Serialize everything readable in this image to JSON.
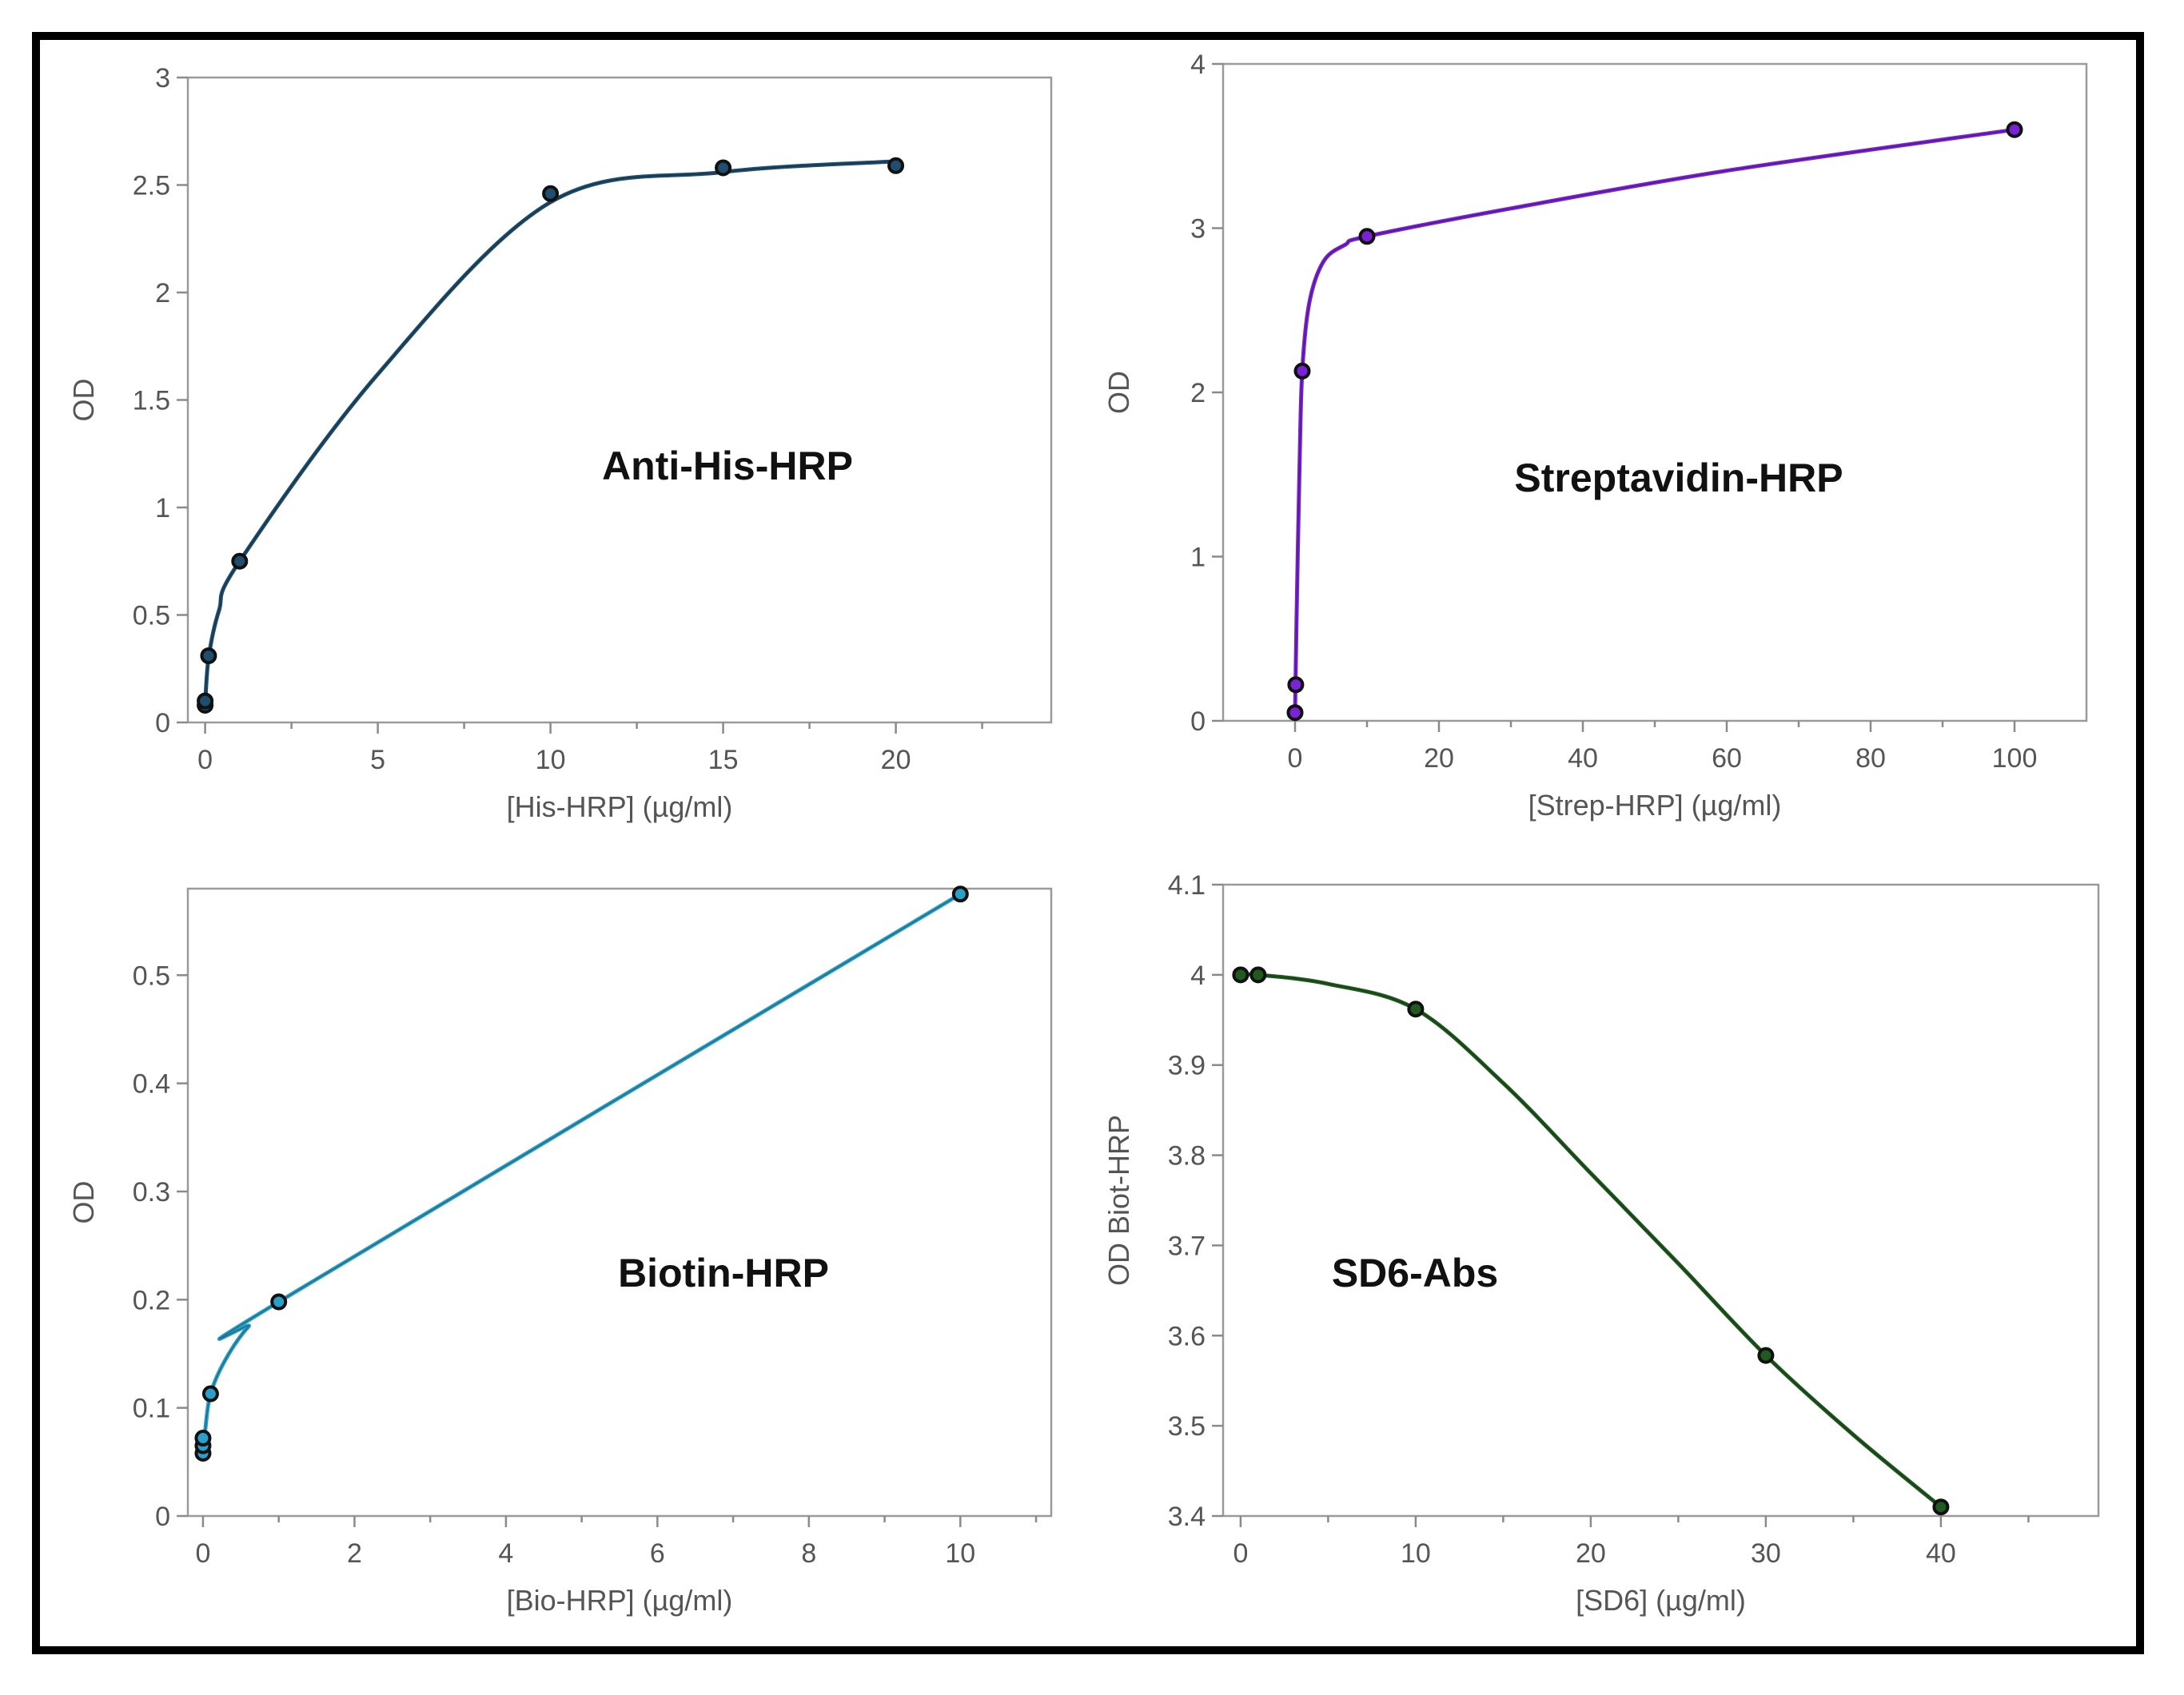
{
  "chart_data": [
    {
      "type": "line",
      "panel_label": "Anti-His-HRP",
      "xlabel": "[His-HRP] (µg/ml)",
      "ylabel": "OD",
      "xlim": [
        -0.5,
        24.5
      ],
      "ylim": [
        0,
        3
      ],
      "xticks": [
        0,
        5,
        10,
        15,
        20
      ],
      "xtick_labels": [
        "0",
        "5",
        "10",
        "15",
        "20"
      ],
      "yticks": [
        0,
        0.5,
        1,
        1.5,
        2,
        2.5,
        3
      ],
      "ytick_labels": [
        "0",
        "0.5",
        "1",
        "1.5",
        "2",
        "2.5",
        "3"
      ],
      "color": "#1f4e6e",
      "points": [
        [
          0,
          0.08
        ],
        [
          0,
          0.1
        ],
        [
          0.1,
          0.31
        ],
        [
          1,
          0.75
        ],
        [
          10,
          2.46
        ],
        [
          15,
          2.58
        ],
        [
          20,
          2.59
        ]
      ],
      "curve": [
        [
          0,
          0.08
        ],
        [
          0.1,
          0.3
        ],
        [
          0.4,
          0.52
        ],
        [
          1,
          0.75
        ],
        [
          5,
          1.62
        ],
        [
          10,
          2.42
        ],
        [
          15,
          2.56
        ],
        [
          20,
          2.61
        ]
      ]
    },
    {
      "type": "line",
      "panel_label": "Streptavidin-HRP",
      "xlabel": "[Strep-HRP] (µg/ml)",
      "ylabel": "OD",
      "xlim": [
        -10,
        110
      ],
      "ylim": [
        0,
        4
      ],
      "xticks": [
        0,
        20,
        40,
        60,
        80,
        100
      ],
      "xtick_labels": [
        "0",
        "20",
        "40",
        "60",
        "80",
        "100"
      ],
      "yticks": [
        0,
        1,
        2,
        3,
        4
      ],
      "ytick_labels": [
        "0",
        "1",
        "2",
        "3",
        "4"
      ],
      "color": "#7a22d6",
      "points": [
        [
          0,
          0.05
        ],
        [
          0.1,
          0.22
        ],
        [
          1,
          2.13
        ],
        [
          10,
          2.95
        ],
        [
          100,
          3.6
        ]
      ],
      "curve": [
        [
          0,
          0.05
        ],
        [
          0.2,
          0.6
        ],
        [
          0.6,
          1.5
        ],
        [
          1,
          2.13
        ],
        [
          2,
          2.55
        ],
        [
          4,
          2.8
        ],
        [
          7,
          2.9
        ],
        [
          10,
          2.95
        ],
        [
          30,
          3.12
        ],
        [
          60,
          3.35
        ],
        [
          100,
          3.6
        ]
      ]
    },
    {
      "type": "line",
      "panel_label": "Biotin-HRP",
      "xlabel": "[Bio-HRP] (µg/ml)",
      "ylabel": "OD",
      "xlim": [
        -0.2,
        11.2
      ],
      "ylim": [
        0,
        0.58
      ],
      "xticks": [
        0,
        2,
        4,
        6,
        8,
        10
      ],
      "xtick_labels": [
        "0",
        "2",
        "4",
        "6",
        "8",
        "10"
      ],
      "yticks": [
        0,
        0.1,
        0.2,
        0.3,
        0.4,
        0.5
      ],
      "ytick_labels": [
        "0",
        "0.1",
        "0.2",
        "0.3",
        "0.4",
        "0.5"
      ],
      "color": "#2aa0c8",
      "points": [
        [
          0,
          0.058
        ],
        [
          0,
          0.065
        ],
        [
          0,
          0.072
        ],
        [
          0.1,
          0.113
        ],
        [
          1,
          0.198
        ],
        [
          10,
          0.575
        ]
      ],
      "curve": [
        [
          0,
          0.058
        ],
        [
          0.03,
          0.08
        ],
        [
          0.1,
          0.113
        ],
        [
          0.3,
          0.145
        ],
        [
          0.6,
          0.175
        ],
        [
          1,
          0.198
        ],
        [
          10,
          0.575
        ]
      ]
    },
    {
      "type": "line",
      "panel_label": "SD6-Abs",
      "xlabel": "[SD6] (µg/ml)",
      "ylabel": "OD Biot-HRP",
      "xlim": [
        -1,
        49
      ],
      "ylim": [
        3.4,
        4.1
      ],
      "xticks": [
        0,
        10,
        20,
        30,
        40
      ],
      "xtick_labels": [
        "0",
        "10",
        "20",
        "30",
        "40"
      ],
      "yticks": [
        3.4,
        3.5,
        3.6,
        3.7,
        3.8,
        3.9,
        4,
        4.1
      ],
      "ytick_labels": [
        "3.4",
        "3.5",
        "3.6",
        "3.7",
        "3.8",
        "3.9",
        "4",
        "4.1"
      ],
      "color": "#1f5a1f",
      "points": [
        [
          0,
          4.0
        ],
        [
          1,
          4.0
        ],
        [
          10,
          3.962
        ],
        [
          30,
          3.578
        ],
        [
          40,
          3.41
        ]
      ],
      "curve": [
        [
          0,
          4.0
        ],
        [
          1,
          4.0
        ],
        [
          5,
          3.99
        ],
        [
          10,
          3.962
        ],
        [
          15,
          3.88
        ],
        [
          20,
          3.78
        ],
        [
          25,
          3.68
        ],
        [
          30,
          3.578
        ],
        [
          35,
          3.49
        ],
        [
          40,
          3.41
        ]
      ]
    }
  ]
}
